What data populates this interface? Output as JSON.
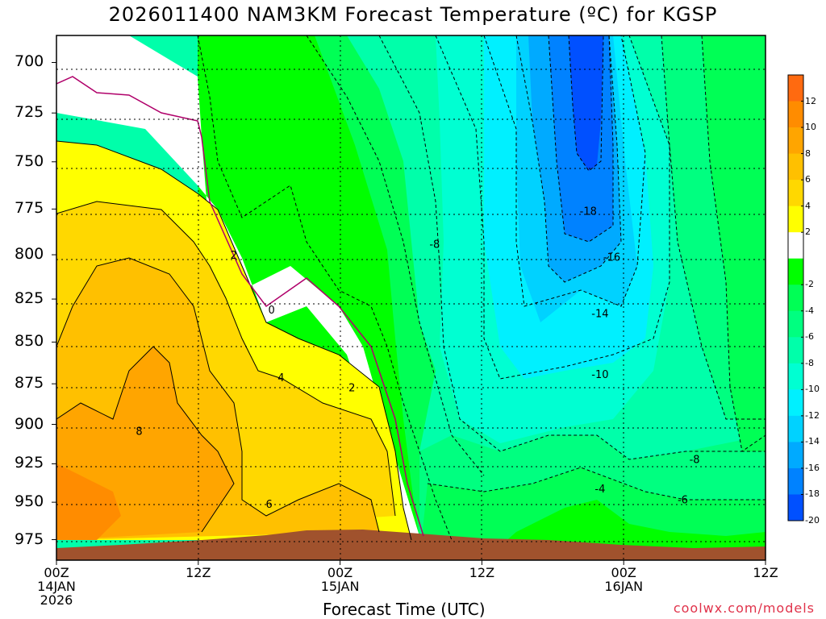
{
  "chart_data": {
    "type": "heatmap",
    "title": "2026011400 NAM3KM Forecast Temperature (ºC) for KGSP",
    "xlabel": "Forecast Time (UTC)",
    "ylabel": "",
    "watermark": "coolwx.com/models",
    "x_hours": [
      0,
      12,
      24,
      36,
      48,
      60
    ],
    "x_ticks": [
      {
        "hour": 0,
        "time": "00Z",
        "day": "14JAN",
        "year": "2026"
      },
      {
        "hour": 12,
        "time": "12Z",
        "day": "",
        "year": ""
      },
      {
        "hour": 24,
        "time": "00Z",
        "day": "15JAN",
        "year": ""
      },
      {
        "hour": 36,
        "time": "12Z",
        "day": "",
        "year": ""
      },
      {
        "hour": 48,
        "time": "00Z",
        "day": "16JAN",
        "year": ""
      },
      {
        "hour": 60,
        "time": "12Z",
        "day": "",
        "year": ""
      }
    ],
    "y_ticks": [
      "700",
      "725",
      "750",
      "775",
      "800",
      "825",
      "850",
      "875",
      "900",
      "925",
      "950",
      "975"
    ],
    "y_range_hPa": [
      687,
      989
    ],
    "colorbar": {
      "levels": [
        "12",
        "10",
        "8",
        "6",
        "4",
        "2",
        "",
        "-2",
        "-4",
        "-6",
        "-8",
        "-10",
        "-12",
        "-14",
        "-16",
        "-18",
        "-20"
      ],
      "colors": [
        "#ff6a10",
        "#ff8c00",
        "#ffa500",
        "#ffc000",
        "#ffd800",
        "#ffff00",
        "#ffffff",
        "#00ff00",
        "#00ff55",
        "#00ff80",
        "#00ffaa",
        "#00ffd2",
        "#00f0ff",
        "#00d2ff",
        "#00aaff",
        "#0082ff",
        "#0050ff"
      ]
    },
    "contour_labels": [
      {
        "text": "0",
        "hour": 18.2,
        "hPa": 831
      },
      {
        "text": "2",
        "hour": 15.0,
        "hPa": 800
      },
      {
        "text": "2",
        "hour": 25.0,
        "hPa": 877
      },
      {
        "text": "4",
        "hour": 19.0,
        "hPa": 871
      },
      {
        "text": "6",
        "hour": 18.0,
        "hPa": 951
      },
      {
        "text": "8",
        "hour": 7.0,
        "hPa": 904
      },
      {
        "text": "-4",
        "hour": 46.0,
        "hPa": 941
      },
      {
        "text": "-6",
        "hour": 53.0,
        "hPa": 948
      },
      {
        "text": "-8",
        "hour": 32.0,
        "hPa": 794
      },
      {
        "text": "-8",
        "hour": 54.0,
        "hPa": 922
      },
      {
        "text": "-10",
        "hour": 46.0,
        "hPa": 869
      },
      {
        "text": "-14",
        "hour": 46.0,
        "hPa": 833
      },
      {
        "text": "-16",
        "hour": 47.0,
        "hPa": 801
      },
      {
        "text": "-18",
        "hour": 45.0,
        "hPa": 776
      }
    ]
  }
}
